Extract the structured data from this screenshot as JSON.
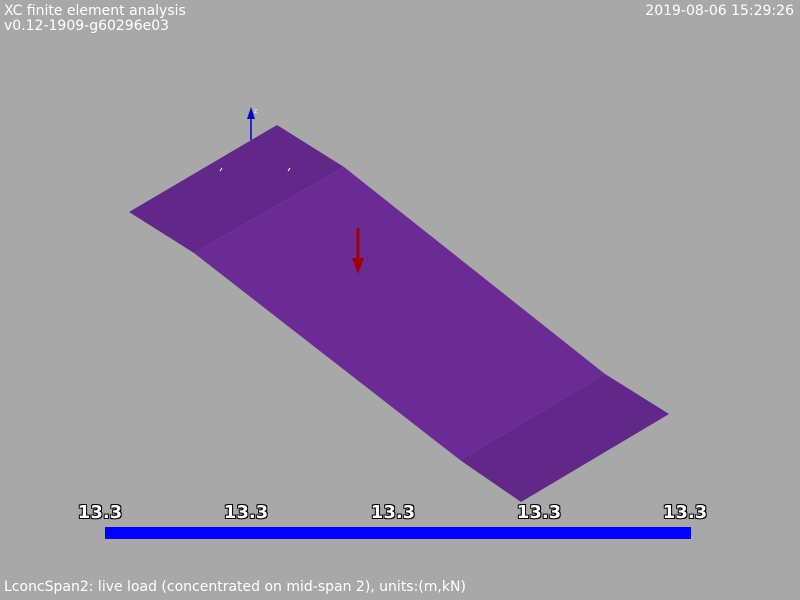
{
  "header": {
    "title": "XC finite element analysis",
    "version": "v0.12-1909-g60296e03",
    "timestamp": "2019-08-06 15:29:26"
  },
  "scene": {
    "slab_color": "#6a2b95",
    "slab_edge_color": "#612889",
    "load_arrow_color": "#a00000",
    "axis_color": "#0000cc",
    "axis_label": "z"
  },
  "scale": {
    "bar_color": "#0000ff",
    "labels": [
      "13.3",
      "13.3",
      "13.3",
      "13.3",
      "13.3"
    ]
  },
  "footer": {
    "caption": "LconcSpan2: live load (concentrated on mid-span 2), units:(m,kN)"
  }
}
